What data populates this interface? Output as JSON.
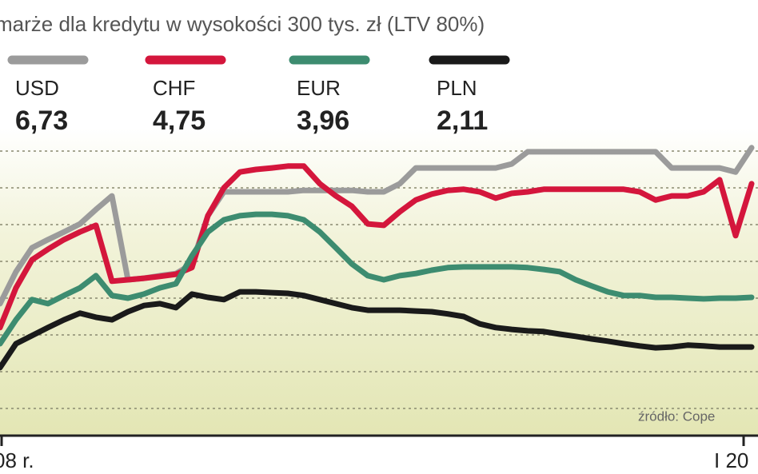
{
  "chart_data": {
    "type": "line",
    "title": "marże dla kredytu w wysokości 300 tys. zł (LTV 80%)",
    "source": "źródło: Cope",
    "x_axis_labels": [
      "08 r.",
      "I 20"
    ],
    "x": [
      0,
      1,
      2,
      3,
      4,
      5,
      6,
      7,
      8,
      9,
      10,
      11,
      12,
      13,
      14,
      15,
      16,
      17,
      18,
      19,
      20,
      21,
      22,
      23,
      24,
      25,
      26,
      27,
      28,
      29,
      30,
      31,
      32,
      33,
      34,
      35,
      36,
      37,
      38,
      39,
      40,
      41,
      42,
      43,
      44,
      45,
      46,
      47
    ],
    "xlim": [
      0,
      47
    ],
    "ylim": [
      0.26,
      8.63
    ],
    "gridlines": [
      1,
      2,
      3,
      4,
      5,
      6,
      7,
      8
    ],
    "series": [
      {
        "name": "USD",
        "legend_value": "6,73",
        "color": "#9b9b9b",
        "values": [
          3.85,
          4.72,
          5.37,
          5.59,
          5.8,
          6.02,
          6.41,
          6.78,
          4.5,
          4.54,
          4.61,
          4.67,
          4.93,
          6.24,
          6.89,
          6.89,
          6.89,
          6.89,
          6.89,
          6.93,
          6.93,
          6.93,
          6.93,
          6.89,
          6.89,
          7.11,
          7.54,
          7.54,
          7.54,
          7.54,
          7.54,
          7.54,
          7.65,
          7.98,
          7.98,
          7.98,
          7.98,
          7.98,
          7.98,
          7.98,
          7.98,
          7.98,
          7.54,
          7.54,
          7.54,
          7.54,
          7.43,
          8.09
        ]
      },
      {
        "name": "CHF",
        "legend_value": "4,75",
        "color": "#d4163c",
        "values": [
          3.2,
          4.28,
          5.04,
          5.33,
          5.59,
          5.8,
          5.98,
          4.46,
          4.5,
          4.54,
          4.59,
          4.65,
          4.83,
          6.24,
          7.0,
          7.43,
          7.5,
          7.54,
          7.59,
          7.59,
          7.11,
          6.78,
          6.5,
          6.02,
          5.98,
          6.35,
          6.67,
          6.83,
          6.93,
          6.96,
          6.89,
          6.72,
          6.85,
          6.89,
          6.96,
          6.96,
          6.96,
          6.96,
          6.96,
          6.96,
          6.89,
          6.67,
          6.78,
          6.78,
          6.89,
          7.22,
          5.7,
          7.11
        ]
      },
      {
        "name": "EUR",
        "legend_value": "3,96",
        "color": "#3d8c70",
        "values": [
          2.76,
          3.41,
          3.96,
          3.85,
          4.07,
          4.28,
          4.61,
          4.07,
          4.0,
          4.11,
          4.28,
          4.39,
          5.15,
          5.8,
          6.13,
          6.24,
          6.28,
          6.28,
          6.24,
          6.13,
          5.8,
          5.37,
          4.93,
          4.61,
          4.5,
          4.61,
          4.67,
          4.76,
          4.83,
          4.85,
          4.85,
          4.85,
          4.85,
          4.83,
          4.78,
          4.72,
          4.5,
          4.33,
          4.17,
          4.07,
          4.07,
          4.02,
          4.02,
          4.0,
          3.98,
          4.0,
          4.0,
          4.02
        ]
      },
      {
        "name": "PLN",
        "legend_value": "2,11",
        "color": "#1a1a1a",
        "values": [
          2.11,
          2.76,
          2.98,
          3.2,
          3.41,
          3.59,
          3.48,
          3.41,
          3.63,
          3.8,
          3.85,
          3.74,
          4.11,
          4.02,
          3.96,
          4.17,
          4.17,
          4.15,
          4.13,
          4.07,
          3.96,
          3.85,
          3.74,
          3.67,
          3.67,
          3.67,
          3.65,
          3.63,
          3.57,
          3.5,
          3.3,
          3.2,
          3.15,
          3.11,
          3.09,
          3.02,
          2.96,
          2.89,
          2.83,
          2.76,
          2.7,
          2.65,
          2.67,
          2.72,
          2.7,
          2.67,
          2.67,
          2.67
        ]
      }
    ]
  }
}
